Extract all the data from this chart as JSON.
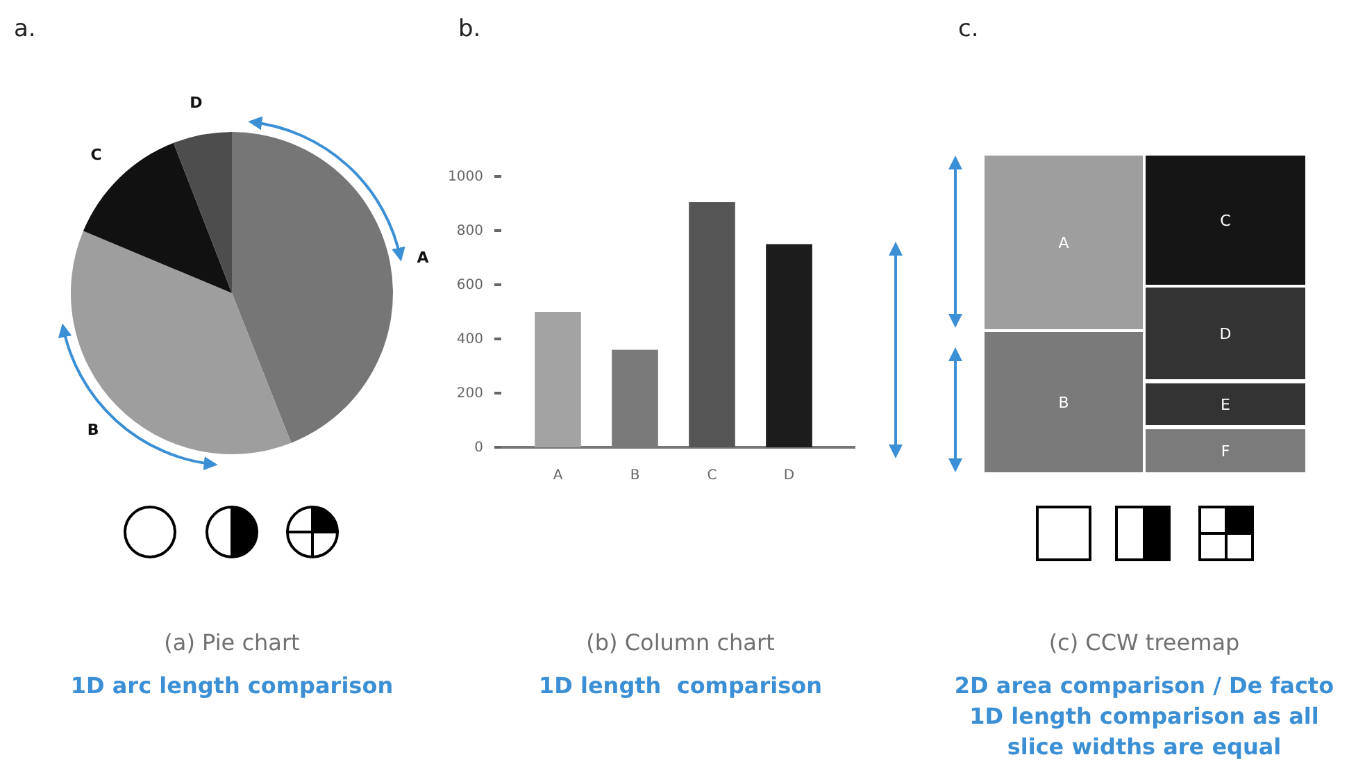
{
  "chart_data": [
    {
      "type": "pie",
      "title": "(a) Pie chart",
      "subtitle": "1D arc length comparison",
      "annotations": [
        "a."
      ],
      "categories": [
        "A",
        "B",
        "C",
        "D"
      ],
      "values": [
        44,
        37.3,
        12.8,
        5.9
      ],
      "colors": [
        "#767676",
        "#9e9e9e",
        "#111111",
        "#4d4d4d"
      ]
    },
    {
      "type": "bar",
      "title": "(b) Column chart",
      "subtitle": "1D length  comparison",
      "annotations": [
        "b."
      ],
      "categories": [
        "A",
        "B",
        "C",
        "D"
      ],
      "values": [
        500,
        360,
        905,
        750
      ],
      "colors": [
        "#a3a3a3",
        "#7a7a7a",
        "#555555",
        "#1c1c1c"
      ],
      "ylim": [
        0,
        1000
      ],
      "yticks": [
        0,
        200,
        400,
        600,
        800,
        1000
      ]
    },
    {
      "type": "other",
      "title": "(c) CCW treemap",
      "subtitle": "2D area comparison / De facto 1D length comparison as all slice widths are equal",
      "annotations": [
        "c."
      ],
      "categories": [
        "A",
        "B",
        "C",
        "D",
        "E",
        "F"
      ],
      "colors": [
        "#9e9e9e",
        "#7a7a7a",
        "#151515",
        "#333333",
        "#333333",
        "#7b7b7b"
      ]
    }
  ]
}
